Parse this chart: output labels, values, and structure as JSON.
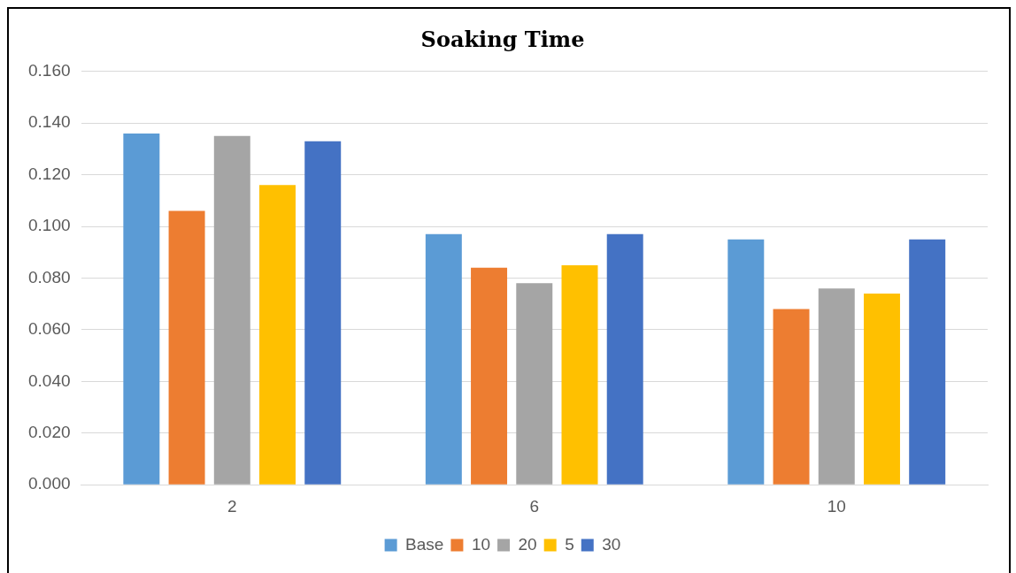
{
  "chart_data": {
    "type": "bar",
    "title": "Soaking Time",
    "categories": [
      "2",
      "6",
      "10"
    ],
    "series": [
      {
        "name": "Base",
        "color": "#5b9bd5",
        "values": [
          0.136,
          0.097,
          0.095
        ]
      },
      {
        "name": "10",
        "color": "#ed7d31",
        "values": [
          0.106,
          0.084,
          0.068
        ]
      },
      {
        "name": "20",
        "color": "#a5a5a5",
        "values": [
          0.135,
          0.078,
          0.076
        ]
      },
      {
        "name": "5",
        "color": "#ffc000",
        "values": [
          0.116,
          0.085,
          0.074
        ]
      },
      {
        "name": "30",
        "color": "#4472c4",
        "values": [
          0.133,
          0.097,
          0.095
        ]
      }
    ],
    "ylim": [
      0,
      0.16
    ],
    "yticks": [
      {
        "value": 0,
        "label": "0.000"
      },
      {
        "value": 0.02,
        "label": "0.020"
      },
      {
        "value": 0.04,
        "label": "0.040"
      },
      {
        "value": 0.06,
        "label": "0.060"
      },
      {
        "value": 0.08,
        "label": "0.080"
      },
      {
        "value": 0.1,
        "label": "0.100"
      },
      {
        "value": 0.12,
        "label": "0.120"
      },
      {
        "value": 0.14,
        "label": "0.140"
      },
      {
        "value": 0.16,
        "label": "0.160"
      }
    ],
    "grid": "y",
    "legend": "bottom"
  }
}
